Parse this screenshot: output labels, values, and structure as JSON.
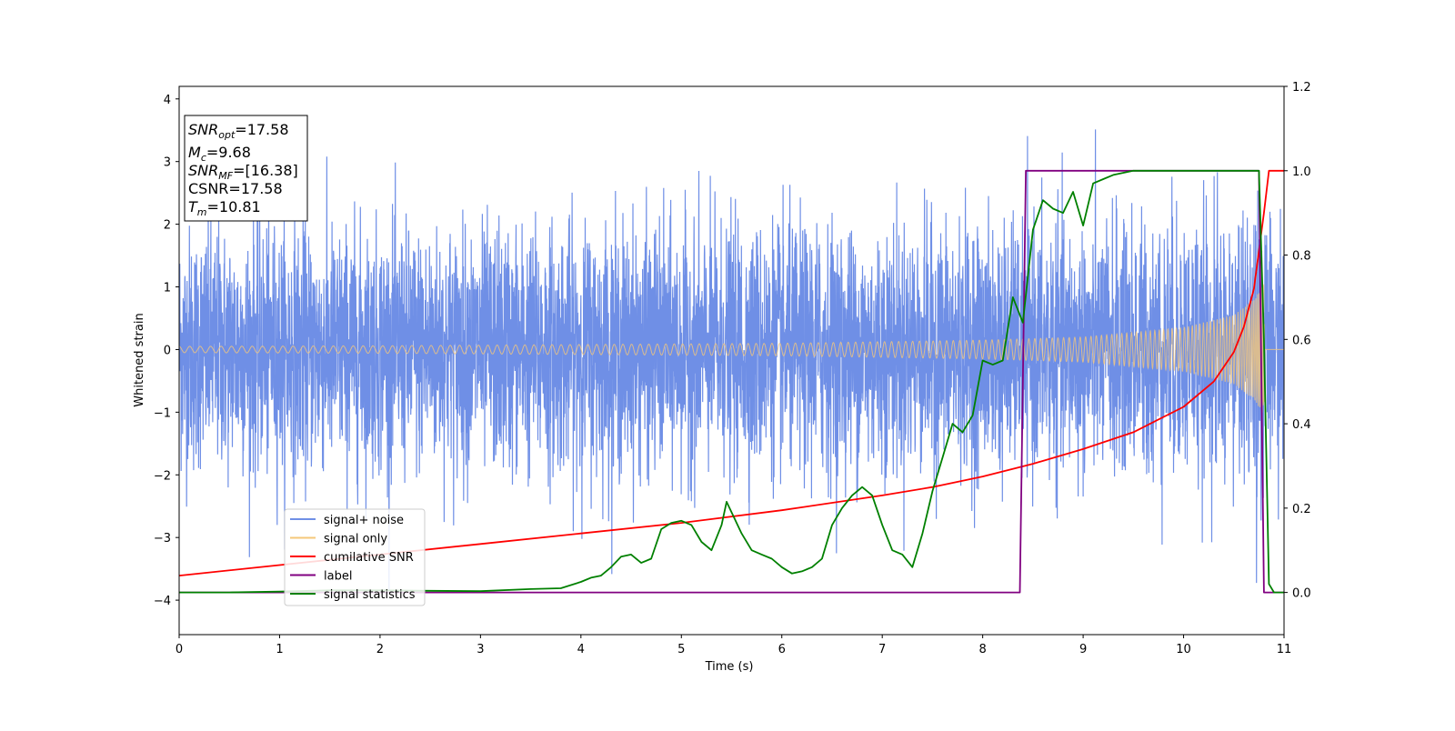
{
  "chart_data": {
    "type": "line",
    "xlabel": "Time (s)",
    "ylabel": "Whitened strain",
    "xlim": [
      0,
      11
    ],
    "ylim_left": [
      -4.55,
      4.2
    ],
    "ylim_right": [
      -0.1,
      1.2
    ],
    "xticks": [
      0,
      1,
      2,
      3,
      4,
      5,
      6,
      7,
      8,
      9,
      10,
      11
    ],
    "yticks_left": [
      -4,
      -3,
      -2,
      -1,
      0,
      1,
      2,
      3,
      4
    ],
    "yticks_right": [
      "0.0",
      "0.2",
      "0.4",
      "0.6",
      "0.8",
      "1.0",
      "1.2"
    ],
    "legend_position": "lower-left",
    "info_box": {
      "lines": [
        {
          "var": "SNR",
          "sub": "opt",
          "rest": "=17.58"
        },
        {
          "var": "M",
          "sub": "c",
          "rest": "=9.68"
        },
        {
          "var": "SNR",
          "sub": "MF",
          "rest": "=[16.38]"
        },
        {
          "var": "CSNR",
          "sub": "",
          "rest": "=17.58"
        },
        {
          "var": "T",
          "sub": "m",
          "rest": "=10.81"
        }
      ]
    },
    "series": [
      {
        "name": "signal+ noise",
        "color": "#6f8fe6",
        "axis": "left",
        "description_params": {
          "noise_std": 1.0,
          "min": -4.2,
          "max": 3.7
        }
      },
      {
        "name": "signal only",
        "color": "#f5c77a",
        "axis": "left",
        "envelope": {
          "t": [
            0,
            2,
            4,
            6,
            8,
            9,
            10,
            10.5,
            10.7,
            10.8,
            10.81
          ],
          "amp": [
            0.05,
            0.06,
            0.08,
            0.1,
            0.15,
            0.2,
            0.35,
            0.55,
            0.8,
            1.05,
            0
          ]
        }
      },
      {
        "name": "cumilative SNR",
        "color": "#ff0000",
        "axis": "right",
        "x": [
          0,
          1,
          2,
          3,
          4,
          5,
          6,
          7,
          7.5,
          8,
          8.5,
          9,
          9.5,
          10,
          10.3,
          10.5,
          10.6,
          10.7,
          10.8,
          10.85,
          11
        ],
        "y": [
          0.04,
          0.065,
          0.09,
          0.115,
          0.14,
          0.165,
          0.195,
          0.23,
          0.25,
          0.275,
          0.305,
          0.34,
          0.38,
          0.44,
          0.5,
          0.57,
          0.63,
          0.72,
          0.9,
          1.0,
          1.0
        ]
      },
      {
        "name": "label",
        "color": "#800080",
        "axis": "right",
        "x": [
          0,
          8.37,
          8.43,
          10.75,
          10.8,
          11
        ],
        "y": [
          0,
          0,
          1,
          1,
          0,
          0
        ]
      },
      {
        "name": "signal statistics",
        "color": "#008000",
        "axis": "right",
        "x": [
          0,
          0.5,
          1,
          1.5,
          2,
          2.5,
          3,
          3.5,
          3.8,
          4,
          4.1,
          4.2,
          4.3,
          4.4,
          4.5,
          4.6,
          4.7,
          4.8,
          4.9,
          5,
          5.1,
          5.2,
          5.3,
          5.4,
          5.45,
          5.5,
          5.6,
          5.7,
          5.8,
          5.9,
          6,
          6.1,
          6.2,
          6.3,
          6.4,
          6.5,
          6.6,
          6.7,
          6.8,
          6.85,
          6.9,
          7,
          7.1,
          7.2,
          7.3,
          7.4,
          7.5,
          7.6,
          7.7,
          7.8,
          7.9,
          8,
          8.1,
          8.2,
          8.3,
          8.4,
          8.5,
          8.6,
          8.7,
          8.8,
          8.9,
          9,
          9.1,
          9.2,
          9.3,
          9.5,
          10,
          10.5,
          10.75,
          10.8,
          10.85,
          10.9,
          11
        ],
        "y": [
          0,
          0,
          0.002,
          0.005,
          0.005,
          0.004,
          0.003,
          0.008,
          0.01,
          0.025,
          0.035,
          0.04,
          0.06,
          0.085,
          0.09,
          0.07,
          0.08,
          0.15,
          0.165,
          0.17,
          0.16,
          0.12,
          0.1,
          0.16,
          0.215,
          0.19,
          0.14,
          0.1,
          0.09,
          0.08,
          0.06,
          0.045,
          0.05,
          0.06,
          0.08,
          0.16,
          0.2,
          0.23,
          0.25,
          0.24,
          0.23,
          0.16,
          0.1,
          0.09,
          0.06,
          0.14,
          0.24,
          0.32,
          0.4,
          0.38,
          0.42,
          0.55,
          0.54,
          0.55,
          0.7,
          0.64,
          0.86,
          0.93,
          0.91,
          0.9,
          0.95,
          0.87,
          0.97,
          0.98,
          0.99,
          1.0,
          1.0,
          1.0,
          1.0,
          0.6,
          0.02,
          0.0,
          0.0
        ]
      }
    ]
  }
}
